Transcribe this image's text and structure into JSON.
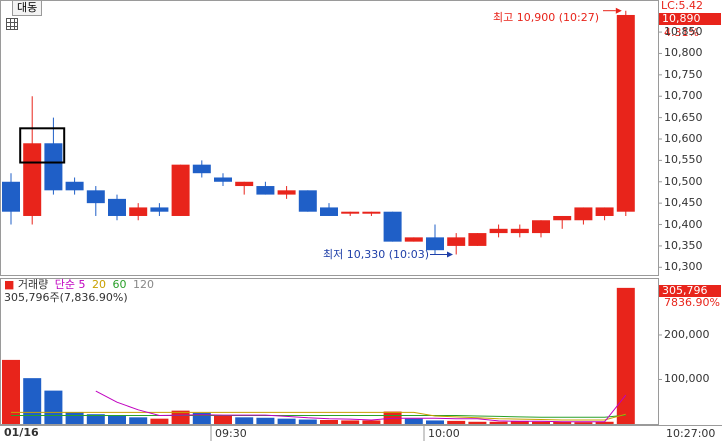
{
  "ticker": {
    "label": "대동"
  },
  "header": {
    "lc_label": "LC:5.42"
  },
  "colors": {
    "up": "#e8241b",
    "down": "#1f5fc7",
    "ma5": "#c000c0",
    "ma20": "#c8a000",
    "ma60": "#2aa02a",
    "ma120": "#777777"
  },
  "price_panel": {
    "current_price": "10,890",
    "change_pct": "4.31%",
    "high_annotation": "최고 10,900 (10:27)",
    "low_annotation": "최저 10,330 (10:03)",
    "y_ticks": [
      "10,850",
      "10,800",
      "10,750",
      "10,700",
      "10,650",
      "10,600",
      "10,550",
      "10,500",
      "10,450",
      "10,400",
      "10,350",
      "10,300"
    ]
  },
  "volume_panel": {
    "legend_title": "거래량",
    "legend_ma_label": "단순",
    "legend_ma_periods": [
      "5",
      "20",
      "60",
      "120"
    ],
    "summary": "305,796주(7,836.90%)",
    "current_volume": "305,796",
    "current_volume_pct": "7836.90%",
    "y_ticks": [
      "200,000",
      "100,000"
    ]
  },
  "time_axis": {
    "date": "01/16",
    "ticks": [
      "09:30",
      "10:00",
      "10:27:00"
    ]
  },
  "chart_data": {
    "type": "candlestick",
    "price_ylim": [
      10282,
      10925
    ],
    "candles": [
      {
        "o": 10500,
        "h": 10520,
        "l": 10400,
        "c": 10430
      },
      {
        "o": 10420,
        "h": 10700,
        "l": 10400,
        "c": 10590
      },
      {
        "o": 10590,
        "h": 10650,
        "l": 10470,
        "c": 10480
      },
      {
        "o": 10500,
        "h": 10510,
        "l": 10470,
        "c": 10480
      },
      {
        "o": 10480,
        "h": 10490,
        "l": 10420,
        "c": 10450
      },
      {
        "o": 10460,
        "h": 10470,
        "l": 10410,
        "c": 10420
      },
      {
        "o": 10420,
        "h": 10450,
        "l": 10410,
        "c": 10440
      },
      {
        "o": 10440,
        "h": 10450,
        "l": 10420,
        "c": 10430
      },
      {
        "o": 10420,
        "h": 10540,
        "l": 10420,
        "c": 10540
      },
      {
        "o": 10540,
        "h": 10550,
        "l": 10510,
        "c": 10520
      },
      {
        "o": 10510,
        "h": 10520,
        "l": 10490,
        "c": 10500
      },
      {
        "o": 10490,
        "h": 10500,
        "l": 10470,
        "c": 10500
      },
      {
        "o": 10490,
        "h": 10500,
        "l": 10470,
        "c": 10470
      },
      {
        "o": 10470,
        "h": 10490,
        "l": 10460,
        "c": 10480
      },
      {
        "o": 10480,
        "h": 10480,
        "l": 10430,
        "c": 10430
      },
      {
        "o": 10440,
        "h": 10450,
        "l": 10420,
        "c": 10420
      },
      {
        "o": 10430,
        "h": 10430,
        "l": 10420,
        "c": 10430
      },
      {
        "o": 10430,
        "h": 10430,
        "l": 10420,
        "c": 10430
      },
      {
        "o": 10430,
        "h": 10430,
        "l": 10360,
        "c": 10360
      },
      {
        "o": 10360,
        "h": 10370,
        "l": 10360,
        "c": 10370
      },
      {
        "o": 10370,
        "h": 10400,
        "l": 10330,
        "c": 10340
      },
      {
        "o": 10350,
        "h": 10380,
        "l": 10330,
        "c": 10370
      },
      {
        "o": 10350,
        "h": 10380,
        "l": 10350,
        "c": 10380
      },
      {
        "o": 10380,
        "h": 10400,
        "l": 10370,
        "c": 10390
      },
      {
        "o": 10380,
        "h": 10400,
        "l": 10370,
        "c": 10390
      },
      {
        "o": 10380,
        "h": 10410,
        "l": 10370,
        "c": 10410
      },
      {
        "o": 10410,
        "h": 10420,
        "l": 10390,
        "c": 10420
      },
      {
        "o": 10410,
        "h": 10440,
        "l": 10400,
        "c": 10440
      },
      {
        "o": 10420,
        "h": 10440,
        "l": 10410,
        "c": 10440
      },
      {
        "o": 10430,
        "h": 10900,
        "l": 10420,
        "c": 10890
      }
    ],
    "volume_ylim": [
      0,
      310000
    ],
    "volumes": [
      {
        "v": 144000,
        "up": true
      },
      {
        "v": 103000,
        "up": false
      },
      {
        "v": 75000,
        "up": false
      },
      {
        "v": 27000,
        "up": false
      },
      {
        "v": 22000,
        "up": false
      },
      {
        "v": 20000,
        "up": false
      },
      {
        "v": 15000,
        "up": false
      },
      {
        "v": 12000,
        "up": true
      },
      {
        "v": 30000,
        "up": true
      },
      {
        "v": 25000,
        "up": false
      },
      {
        "v": 18000,
        "up": true
      },
      {
        "v": 15000,
        "up": false
      },
      {
        "v": 14000,
        "up": false
      },
      {
        "v": 12000,
        "up": false
      },
      {
        "v": 10000,
        "up": false
      },
      {
        "v": 9000,
        "up": true
      },
      {
        "v": 8000,
        "up": true
      },
      {
        "v": 8000,
        "up": true
      },
      {
        "v": 28000,
        "up": true
      },
      {
        "v": 12000,
        "up": false
      },
      {
        "v": 8000,
        "up": false
      },
      {
        "v": 7000,
        "up": true
      },
      {
        "v": 5000,
        "up": true
      },
      {
        "v": 5000,
        "up": true
      },
      {
        "v": 6000,
        "up": true
      },
      {
        "v": 5000,
        "up": true
      },
      {
        "v": 5000,
        "up": true
      },
      {
        "v": 4000,
        "up": true
      },
      {
        "v": 5000,
        "up": true
      },
      {
        "v": 305796,
        "up": true
      }
    ],
    "ma5": [
      null,
      null,
      null,
      null,
      74000,
      49000,
      32000,
      19000,
      20000,
      21000,
      20000,
      20000,
      20000,
      17000,
      14000,
      12000,
      11000,
      9000,
      13000,
      13000,
      13000,
      12000,
      12000,
      7000,
      6000,
      6000,
      5000,
      5000,
      5000,
      65000
    ],
    "ma20": [
      26000,
      26000,
      26000,
      26000,
      26000,
      26000,
      26000,
      26000,
      26000,
      26000,
      26000,
      26000,
      26000,
      26000,
      26000,
      26000,
      26000,
      26000,
      26000,
      26000,
      18000,
      16000,
      14000,
      12000,
      11000,
      10000,
      9000,
      9000,
      9000,
      22000
    ],
    "ma60": [
      19000,
      19000,
      19000,
      19000,
      19000,
      19000,
      19000,
      19000,
      19000,
      19000,
      19000,
      19000,
      19000,
      19000,
      19000,
      19000,
      19000,
      19000,
      19000,
      19000,
      19000,
      19000,
      18000,
      17000,
      16000,
      15000,
      15000,
      15000,
      15000,
      20000
    ]
  }
}
